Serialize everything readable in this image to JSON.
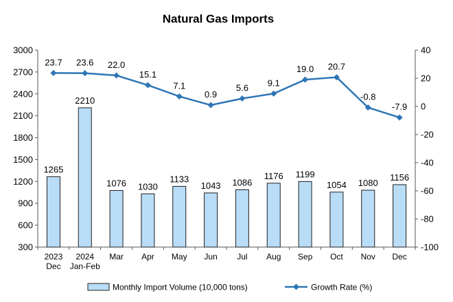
{
  "chart_data": {
    "type": "bar",
    "title": "Natural Gas Imports",
    "categories": [
      [
        "2023",
        "Dec"
      ],
      [
        "2024",
        "Jan-Feb"
      ],
      [
        "Mar"
      ],
      [
        "Apr"
      ],
      [
        "May"
      ],
      [
        "Jun"
      ],
      [
        "Jul"
      ],
      [
        "Aug"
      ],
      [
        "Sep"
      ],
      [
        "Oct"
      ],
      [
        "Nov"
      ],
      [
        "Dec"
      ]
    ],
    "series": [
      {
        "name": "Monthly Import Volume (10,000 tons)",
        "type": "bar",
        "axis": "left",
        "values": [
          1265,
          2210,
          1076,
          1030,
          1133,
          1043,
          1086,
          1176,
          1199,
          1054,
          1080,
          1156
        ],
        "labels": [
          "1265",
          "2210",
          "1076",
          "1030",
          "1133",
          "1043",
          "1086",
          "1176",
          "1199",
          "1054",
          "1080",
          "1156"
        ]
      },
      {
        "name": "Growth Rate (%)",
        "type": "line",
        "axis": "right",
        "values": [
          23.7,
          23.6,
          22.0,
          15.1,
          7.1,
          0.9,
          5.6,
          9.1,
          19.0,
          20.7,
          -0.8,
          -7.9
        ],
        "labels": [
          "23.7",
          "23.6",
          "22.0",
          "15.1",
          "7.1",
          "0.9",
          "5.6",
          "9.1",
          "19.0",
          "20.7",
          "-0.8",
          "-7.9"
        ]
      }
    ],
    "y_left": {
      "lim": [
        300,
        3000
      ],
      "ticks": [
        300,
        600,
        900,
        1200,
        1500,
        1800,
        2100,
        2400,
        2700,
        3000
      ]
    },
    "y_right": {
      "lim": [
        -100,
        40
      ],
      "ticks": [
        -100,
        -80,
        -60,
        -40,
        -20,
        0,
        20,
        40
      ]
    },
    "grid": false,
    "legend": "bottom",
    "colors": {
      "bar_fill": "#b9dcf7",
      "bar_stroke": "#1f1f1f",
      "line": "#2e75b6"
    }
  }
}
